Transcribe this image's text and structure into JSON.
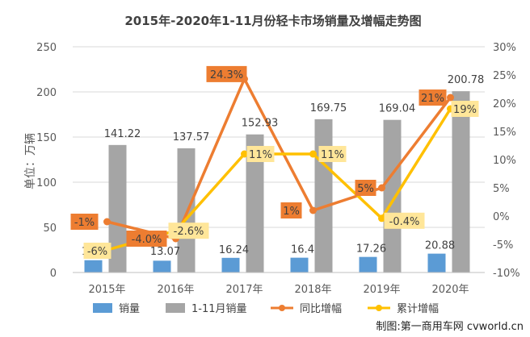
{
  "chart_data": {
    "type": "bar",
    "title": "2015年-2020年1-11月份轻卡市场销量及增幅走势图",
    "ylabel": "单位：万辆",
    "categories": [
      "2015年",
      "2016年",
      "2017年",
      "2018年",
      "2019年",
      "2020年"
    ],
    "ylim": [
      0,
      250
    ],
    "y_ticks": [
      "0",
      "50",
      "100",
      "150",
      "200",
      "250"
    ],
    "y2lim": [
      -10,
      30
    ],
    "y2_ticks": [
      "-10%",
      "-5%",
      "0%",
      "5%",
      "10%",
      "15%",
      "20%",
      "25%",
      "30%"
    ],
    "grid": true,
    "legend_position": "bottom",
    "series": [
      {
        "name": "销量",
        "kind": "bar",
        "axis": "left",
        "color": "#5b9bd5",
        "values": [
          13.61,
          13.07,
          16.24,
          16.4,
          17.26,
          20.88
        ],
        "labels": [
          "13.61",
          "13.07",
          "16.24",
          "16.4",
          "17.26",
          "20.88"
        ]
      },
      {
        "name": "1-11月销量",
        "kind": "bar",
        "axis": "left",
        "color": "#a5a5a5",
        "values": [
          141.22,
          137.57,
          152.93,
          169.75,
          169.04,
          200.78
        ],
        "labels": [
          "141.22",
          "137.57",
          "152.93",
          "169.75",
          "169.04",
          "200.78"
        ]
      },
      {
        "name": "同比增幅",
        "kind": "line",
        "axis": "right",
        "color": "#ed7d31",
        "values": [
          -1,
          -4.0,
          24.3,
          1,
          5,
          21
        ],
        "labels": [
          "-1%",
          "-4.0%",
          "24.3%",
          "1%",
          "5%",
          "21%"
        ]
      },
      {
        "name": "累计增幅",
        "kind": "line",
        "axis": "right",
        "color": "#ffc000",
        "label_bg": "#ffe699",
        "values": [
          -6,
          -2.6,
          11,
          11,
          -0.4,
          19
        ],
        "labels": [
          "-6%",
          "-2.6%",
          "11%",
          "11%",
          "-0.4%",
          "19%"
        ]
      }
    ],
    "credit": "制图:第一商用车网 cvworld.cn"
  }
}
